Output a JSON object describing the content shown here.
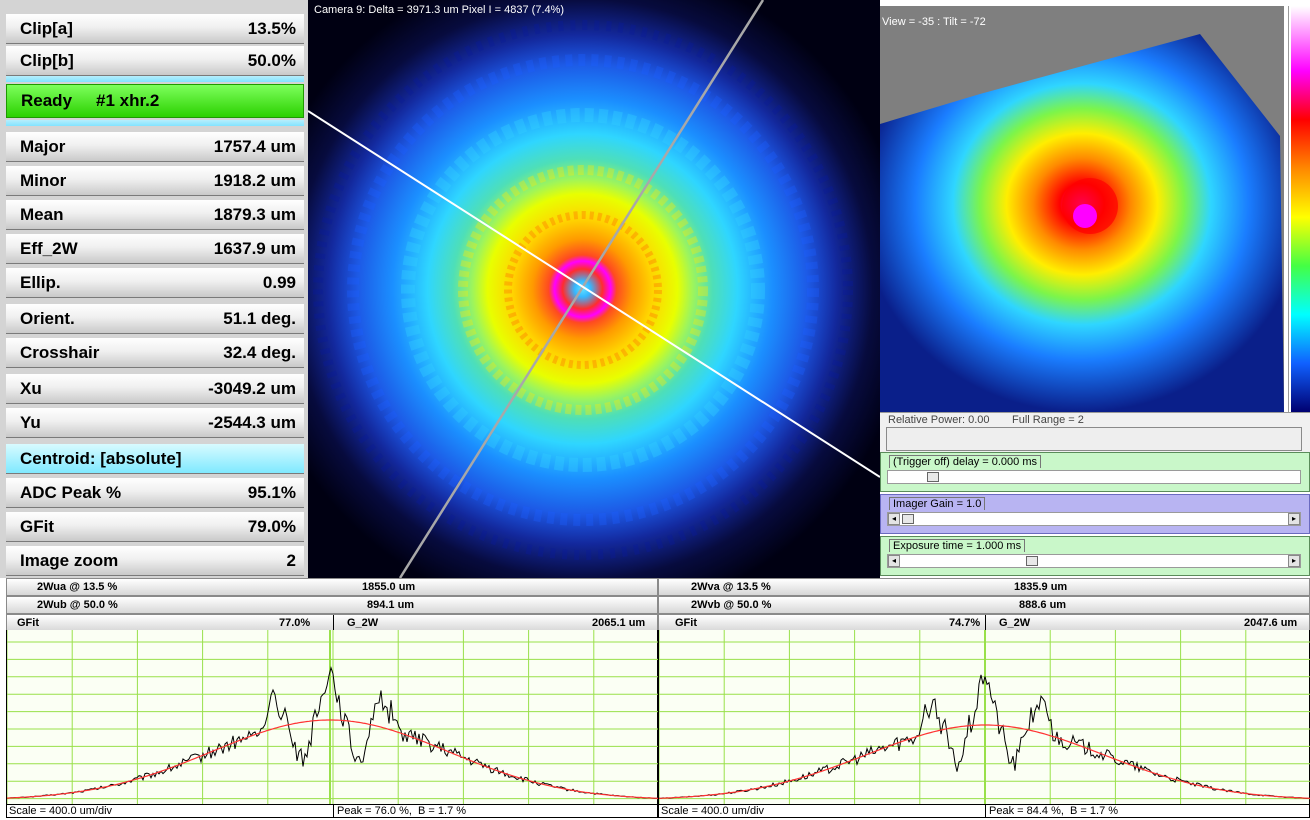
{
  "left_panel": {
    "clip_a": {
      "label": "Clip[a]",
      "value": "13.5%"
    },
    "clip_b": {
      "label": "Clip[b]",
      "value": "50.0%"
    },
    "status": {
      "state": "Ready",
      "config": "#1 xhr.2"
    },
    "major": {
      "label": "Major",
      "value": "1757.4 um"
    },
    "minor": {
      "label": "Minor",
      "value": "1918.2 um"
    },
    "mean": {
      "label": "Mean",
      "value": "1879.3 um"
    },
    "eff_2w": {
      "label": "Eff_2W",
      "value": "1637.9 um"
    },
    "ellip": {
      "label": "Ellip.",
      "value": "0.99"
    },
    "orient": {
      "label": "Orient.",
      "value": "51.1 deg."
    },
    "crosshair": {
      "label": "Crosshair",
      "value": "32.4 deg."
    },
    "xu": {
      "label": "Xu",
      "value": "-3049.2 um"
    },
    "yu": {
      "label": "Yu",
      "value": "-2544.3 um"
    },
    "centroid": {
      "label": "Centroid: [absolute]"
    },
    "adc_peak": {
      "label": "ADC Peak %",
      "value": "95.1%"
    },
    "gfit": {
      "label": "GFit",
      "value": "79.0%"
    },
    "image_zoom": {
      "label": "Image zoom",
      "value": "2"
    }
  },
  "main_view": {
    "camera_label": "Camera 9: Delta = 3971.3 um Pixel I = 4837 (7.4%)"
  },
  "view3d": {
    "label": "View = -35 : Tilt = -72"
  },
  "controls": {
    "relative_power": "Relative Power: 0.00",
    "full_range": "Full Range = 2",
    "trigger": {
      "label": "(Trigger off) delay = 0.000 ms",
      "level": 0.05
    },
    "gain": {
      "label": "Imager Gain = 1.0",
      "level": 0.0
    },
    "exposure": {
      "label": "Exposure time = 1.000 ms",
      "level": 0.33
    }
  },
  "profile_a": {
    "w13_label": "2Wua @ 13.5 %",
    "w13_value": "1855.0 um",
    "w50_label": "2Wub @ 50.0 %",
    "w50_value": "894.1 um",
    "gfit_label": "GFit",
    "gfit_value": "77.0%",
    "g2w_label": "G_2W",
    "g2w_value": "2065.1 um",
    "scale": "Scale = 400.0 um/div",
    "peak": "Peak = 76.0 %,  B = 1.7 %"
  },
  "profile_b": {
    "w13_label": "2Wva @ 13.5 %",
    "w13_value": "1835.9 um",
    "w50_label": "2Wvb @ 50.0 %",
    "w50_value": "888.6 um",
    "gfit_label": "GFit",
    "gfit_value": "74.7%",
    "g2w_label": "G_2W",
    "g2w_value": "2047.6 um",
    "scale": "Scale = 400.0 um/div",
    "peak": "Peak = 84.4 %,  B = 1.7 %"
  },
  "colors": {
    "status_green": "#33d600",
    "centroid_cyan": "#8ee9ff",
    "grid_green": "#99e04a",
    "fit_red": "#ff3333",
    "trace_black": "#000000"
  }
}
